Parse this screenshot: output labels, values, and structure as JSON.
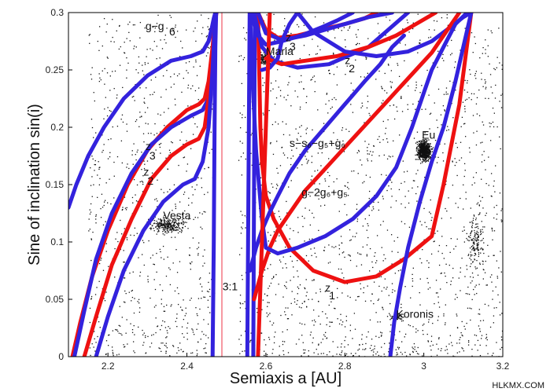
{
  "chart_data": {
    "type": "scatter",
    "title": "",
    "xlabel": "Semiaxis a [AU]",
    "ylabel": "Sine of inclination sin(i)",
    "xlim": [
      2.1,
      3.2
    ],
    "ylim": [
      0,
      0.3
    ],
    "xticks": [
      "2.2",
      "2.4",
      "2.6",
      "2.8",
      "3",
      "3.2"
    ],
    "yticks": [
      "0",
      "0.05",
      "0.1",
      "0.15",
      "0.2",
      "0.25",
      "0.3"
    ],
    "grid": false,
    "colors": {
      "red": "#ee1111",
      "blue": "#3322dd",
      "points": "#111111"
    },
    "annotations": [
      {
        "text": "Maria",
        "x": 2.6,
        "y": 0.263
      },
      {
        "text": "Eu",
        "x": 2.995,
        "y": 0.19
      },
      {
        "text": "Vesta",
        "x": 2.34,
        "y": 0.12
      },
      {
        "text": "Koronis",
        "x": 2.93,
        "y": 0.034
      },
      {
        "text": "3:1",
        "x": 2.49,
        "y": 0.058
      },
      {
        "text": "g−g",
        "x": 2.295,
        "y": 0.285
      },
      {
        "text": "6",
        "x": 2.355,
        "y": 0.28
      },
      {
        "text": "z",
        "x": 2.295,
        "y": 0.18
      },
      {
        "text": "3",
        "x": 2.305,
        "y": 0.172
      },
      {
        "text": "z",
        "x": 2.29,
        "y": 0.158
      },
      {
        "text": "2",
        "x": 2.3,
        "y": 0.15
      },
      {
        "text": "z",
        "x": 2.65,
        "y": 0.275
      },
      {
        "text": "3",
        "x": 2.66,
        "y": 0.267
      },
      {
        "text": "z",
        "x": 2.8,
        "y": 0.255
      },
      {
        "text": "2",
        "x": 2.81,
        "y": 0.248
      },
      {
        "text": "z",
        "x": 2.75,
        "y": 0.057
      },
      {
        "text": "1",
        "x": 2.76,
        "y": 0.05
      },
      {
        "text": "s−s₆−g₅+g₆",
        "x": 2.66,
        "y": 0.183
      },
      {
        "text": "g−2g₆+g₅",
        "x": 2.69,
        "y": 0.14
      }
    ],
    "series": [
      {
        "color": "red",
        "x": [
          2.11,
          2.13,
          2.16,
          2.2,
          2.25,
          2.3,
          2.35,
          2.4,
          2.43,
          2.445,
          2.455,
          2.465,
          2.47,
          2.475
        ],
        "y": [
          0.0,
          0.03,
          0.07,
          0.11,
          0.15,
          0.18,
          0.2,
          0.215,
          0.22,
          0.225,
          0.24,
          0.27,
          0.29,
          0.3
        ]
      },
      {
        "color": "blue",
        "x": [
          2.1,
          2.12,
          2.15,
          2.19,
          2.24,
          2.3,
          2.36,
          2.41,
          2.44,
          2.455,
          2.462,
          2.468,
          2.472,
          2.475
        ],
        "y": [
          0.13,
          0.15,
          0.175,
          0.2,
          0.225,
          0.245,
          0.258,
          0.262,
          0.266,
          0.275,
          0.285,
          0.295,
          0.3,
          0.3
        ]
      },
      {
        "color": "blue",
        "x": [
          2.115,
          2.14,
          2.17,
          2.21,
          2.26,
          2.31,
          2.36,
          2.41,
          2.44,
          2.455,
          2.462,
          2.47,
          2.474
        ],
        "y": [
          0.0,
          0.04,
          0.085,
          0.125,
          0.16,
          0.185,
          0.2,
          0.21,
          0.215,
          0.225,
          0.245,
          0.275,
          0.3
        ]
      },
      {
        "color": "red",
        "x": [
          2.14,
          2.17,
          2.21,
          2.26,
          2.31,
          2.36,
          2.4,
          2.43,
          2.445,
          2.455,
          2.462,
          2.47,
          2.474
        ],
        "y": [
          0.0,
          0.035,
          0.08,
          0.12,
          0.155,
          0.175,
          0.185,
          0.19,
          0.2,
          0.225,
          0.255,
          0.285,
          0.3
        ]
      },
      {
        "color": "blue",
        "x": [
          2.17,
          2.2,
          2.24,
          2.29,
          2.34,
          2.39,
          2.42,
          2.44,
          2.455,
          2.465,
          2.472
        ],
        "y": [
          0.0,
          0.035,
          0.075,
          0.11,
          0.135,
          0.15,
          0.155,
          0.17,
          0.2,
          0.25,
          0.3
        ]
      },
      {
        "color": "blue",
        "x": [
          2.465,
          2.468,
          2.47,
          2.472,
          2.474
        ],
        "y": [
          0.0,
          0.1,
          0.2,
          0.27,
          0.3
        ]
      },
      {
        "color": "blue",
        "x": [
          2.553,
          2.555,
          2.557,
          2.559
        ],
        "y": [
          0.0,
          0.1,
          0.2,
          0.3
        ]
      },
      {
        "color": "blue",
        "x": [
          2.568,
          2.57,
          2.572
        ],
        "y": [
          0.0,
          0.15,
          0.3
        ]
      },
      {
        "color": "red",
        "x": [
          2.58,
          2.583,
          2.586,
          2.59,
          2.6,
          2.62,
          2.66,
          2.72,
          2.8,
          2.88,
          2.95,
          3.02,
          3.05,
          3.09,
          3.12
        ],
        "y": [
          0.3,
          0.25,
          0.2,
          0.17,
          0.14,
          0.12,
          0.095,
          0.075,
          0.065,
          0.07,
          0.085,
          0.105,
          0.15,
          0.22,
          0.3
        ]
      },
      {
        "color": "red",
        "x": [
          2.58,
          2.6,
          2.63,
          2.68,
          2.74,
          2.8,
          2.85,
          2.88
        ],
        "y": [
          0.3,
          0.285,
          0.278,
          0.28,
          0.285,
          0.29,
          0.295,
          0.3
        ]
      },
      {
        "color": "blue",
        "x": [
          2.56,
          2.58,
          2.6,
          2.64,
          2.69,
          2.74,
          2.78,
          2.82
        ],
        "y": [
          0.3,
          0.28,
          0.272,
          0.275,
          0.28,
          0.287,
          0.293,
          0.3
        ]
      },
      {
        "color": "blue",
        "x": [
          2.58,
          2.6,
          2.64,
          2.7,
          2.76,
          2.82,
          2.86,
          2.89,
          2.92
        ],
        "y": [
          0.3,
          0.282,
          0.276,
          0.28,
          0.286,
          0.292,
          0.296,
          0.298,
          0.3
        ]
      },
      {
        "color": "blue",
        "x": [
          2.57,
          2.59,
          2.62,
          2.68,
          2.76,
          2.86,
          2.92,
          2.96
        ],
        "y": [
          0.3,
          0.27,
          0.258,
          0.252,
          0.255,
          0.27,
          0.288,
          0.3
        ]
      },
      {
        "color": "red",
        "x": [
          2.6,
          2.64,
          2.7,
          2.78,
          2.86,
          2.93,
          2.98,
          3.01,
          3.03
        ],
        "y": [
          0.26,
          0.255,
          0.258,
          0.262,
          0.27,
          0.28,
          0.29,
          0.296,
          0.3
        ]
      },
      {
        "color": "blue",
        "x": [
          2.59,
          2.61,
          2.63,
          2.64,
          2.66,
          2.68,
          2.72,
          2.8,
          2.88,
          2.96,
          3.02,
          3.07,
          3.1,
          3.12
        ],
        "y": [
          0.25,
          0.252,
          0.26,
          0.275,
          0.29,
          0.3,
          0.283,
          0.266,
          0.262,
          0.266,
          0.275,
          0.288,
          0.296,
          0.3
        ]
      },
      {
        "color": "red",
        "x": [
          2.57,
          2.59,
          2.61,
          2.63,
          2.66,
          2.7,
          2.74,
          2.78,
          2.82,
          2.86,
          2.9,
          2.94,
          2.98,
          3.02,
          3.06,
          3.09
        ],
        "y": [
          0.05,
          0.075,
          0.095,
          0.11,
          0.125,
          0.145,
          0.16,
          0.175,
          0.19,
          0.205,
          0.22,
          0.235,
          0.25,
          0.265,
          0.285,
          0.3
        ]
      },
      {
        "color": "blue",
        "x": [
          2.56,
          2.575,
          2.59,
          2.6,
          2.61,
          2.63,
          2.66,
          2.7,
          2.75,
          2.8,
          2.85,
          2.89,
          2.92,
          2.95
        ],
        "y": [
          0.075,
          0.095,
          0.11,
          0.118,
          0.126,
          0.14,
          0.16,
          0.18,
          0.2,
          0.22,
          0.24,
          0.255,
          0.27,
          0.28
        ]
      },
      {
        "color": "blue",
        "x": [
          2.56,
          2.565,
          2.575,
          2.59,
          2.6,
          2.63,
          2.68,
          2.75,
          2.82,
          2.88,
          2.93,
          2.97,
          3.0,
          3.02,
          3.05,
          3.08,
          3.11
        ],
        "y": [
          0.3,
          0.25,
          0.18,
          0.12,
          0.095,
          0.09,
          0.095,
          0.105,
          0.12,
          0.14,
          0.165,
          0.2,
          0.23,
          0.25,
          0.27,
          0.29,
          0.3
        ]
      },
      {
        "color": "red",
        "x": [
          2.58,
          2.585,
          2.59,
          2.6,
          2.61
        ],
        "y": [
          0.0,
          0.05,
          0.1,
          0.2,
          0.3
        ]
      },
      {
        "color": "blue",
        "x": [
          2.915,
          2.925,
          2.94,
          2.96,
          2.99,
          3.02,
          3.05,
          3.08,
          3.1,
          3.12
        ],
        "y": [
          0.0,
          0.03,
          0.06,
          0.095,
          0.135,
          0.17,
          0.2,
          0.24,
          0.27,
          0.3
        ]
      }
    ]
  },
  "watermark": "HLKMX.COM"
}
